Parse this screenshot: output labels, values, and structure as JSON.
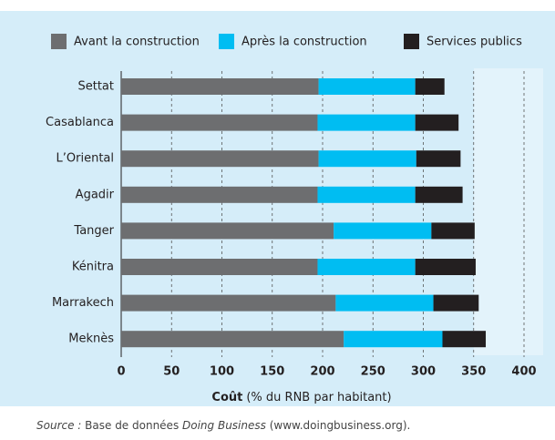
{
  "chart_data": {
    "type": "stacked-barh",
    "categories": [
      "Settat",
      "Casablanca",
      "L’Oriental",
      "Agadir",
      "Tanger",
      "Kénitra",
      "Marrakech",
      "Meknès"
    ],
    "series": [
      {
        "name": "Avant la construction",
        "color": "#6d6e70",
        "values": [
          196,
          195,
          196,
          195,
          211,
          195,
          213,
          221
        ]
      },
      {
        "name": "Après la construction",
        "color": "#00bdf2",
        "values": [
          96,
          97,
          97,
          97,
          97,
          97,
          97,
          98
        ]
      },
      {
        "name": "Services publics",
        "color": "#231f20",
        "values": [
          29,
          43,
          44,
          47,
          43,
          60,
          45,
          43
        ]
      }
    ],
    "xlim": [
      0,
      400
    ],
    "xticks": [
      0,
      50,
      100,
      150,
      200,
      250,
      300,
      350,
      400
    ],
    "grid": true,
    "xlabel_bold": "Coût",
    "xlabel": "(% du RNB par habitant)",
    "source_parts": [
      "Source :",
      " Base de données ",
      "Doing Business",
      " (www.doingbusiness.org)."
    ]
  }
}
